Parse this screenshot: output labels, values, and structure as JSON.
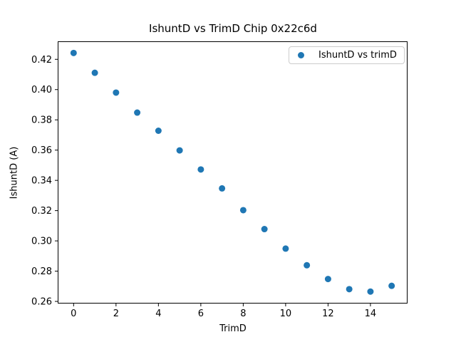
{
  "chart_data": {
    "type": "scatter",
    "title": "IshuntD vs TrimD Chip 0x22c6d",
    "xlabel": "TrimD",
    "ylabel": "IshuntD (A)",
    "legend_label": "IshuntD vs trimD",
    "legend_position": "upper right",
    "marker_color": "#1f77b4",
    "grid": false,
    "x": [
      0,
      1,
      2,
      3,
      4,
      5,
      6,
      7,
      8,
      9,
      10,
      11,
      12,
      13,
      14,
      15
    ],
    "y": [
      0.4242,
      0.4111,
      0.398,
      0.3848,
      0.3728,
      0.3598,
      0.3472,
      0.3347,
      0.3203,
      0.3078,
      0.2949,
      0.2839,
      0.2748,
      0.2681,
      0.2665,
      0.2703
    ],
    "xlim": [
      -0.75,
      15.75
    ],
    "ylim": [
      0.2586,
      0.4319
    ],
    "xticks": [
      0,
      2,
      4,
      6,
      8,
      10,
      12,
      14
    ],
    "yticks": [
      0.26,
      0.28,
      0.3,
      0.32,
      0.34,
      0.36,
      0.38,
      0.4,
      0.42
    ]
  }
}
